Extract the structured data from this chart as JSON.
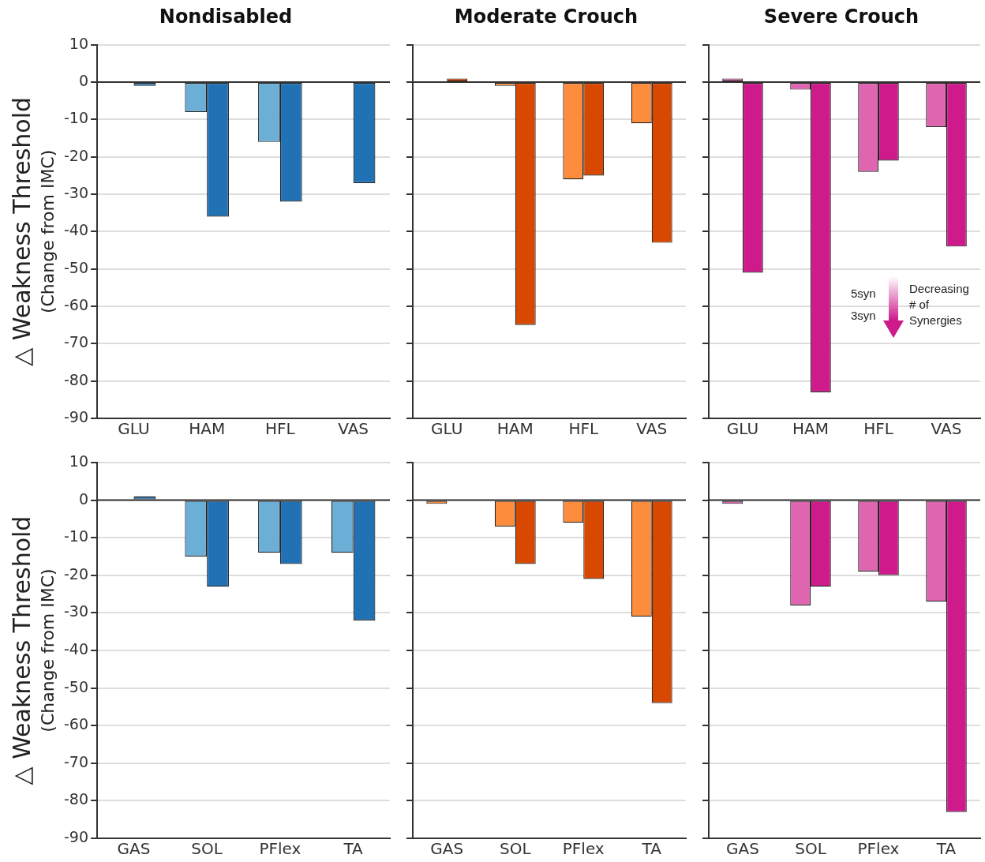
{
  "chart_data": [
    {
      "type": "bar",
      "title": "Nondisabled",
      "ylabel": "△ Weakness Threshold\n(Change from IMC)",
      "categories": [
        "GLU",
        "HAM",
        "HFL",
        "VAS"
      ],
      "series": [
        {
          "color": "#6baed6",
          "values": [
            0,
            -8,
            -16,
            0
          ]
        },
        {
          "color": "#2171b5",
          "values": [
            -1,
            -36,
            -32,
            -27
          ]
        }
      ],
      "ylim": [
        -90,
        10
      ],
      "yticks": [
        -90,
        -80,
        -70,
        -60,
        -50,
        -40,
        -30,
        -20,
        -10,
        0,
        10
      ],
      "grid": "y",
      "ref_lines": [
        {
          "axis": "y",
          "value": 0,
          "color": "#333333"
        }
      ]
    },
    {
      "type": "bar",
      "title": "Moderate Crouch",
      "categories": [
        "GLU",
        "HAM",
        "HFL",
        "VAS"
      ],
      "series": [
        {
          "color": "#fd8d3c",
          "values": [
            0,
            -1,
            -26,
            -11
          ]
        },
        {
          "color": "#d94801",
          "values": [
            1,
            -65,
            -25,
            -43
          ]
        }
      ],
      "ylim": [
        -90,
        10
      ],
      "yticks": [
        -90,
        -80,
        -70,
        -60,
        -50,
        -40,
        -30,
        -20,
        -10,
        0,
        10
      ],
      "grid": "y",
      "tick_labels": "x",
      "ref_lines": [
        {
          "axis": "y",
          "value": 0,
          "color": "#333333"
        }
      ]
    },
    {
      "type": "bar",
      "title": "Severe Crouch",
      "categories": [
        "GLU",
        "HAM",
        "HFL",
        "VAS"
      ],
      "series": [
        {
          "color": "#df65b0",
          "values": [
            1,
            -2,
            -24,
            -12
          ]
        },
        {
          "color": "#ce1a8a",
          "values": [
            -51,
            -83,
            -21,
            -44
          ]
        }
      ],
      "ylim": [
        -90,
        10
      ],
      "yticks": [
        -90,
        -80,
        -70,
        -60,
        -50,
        -40,
        -30,
        -20,
        -10,
        0,
        10
      ],
      "grid": "y",
      "tick_labels": "x",
      "ref_lines": [
        {
          "axis": "y",
          "value": 0,
          "color": "#333333"
        }
      ],
      "annotations": [
        "5syn",
        "3syn",
        "Decreasing # of Synergies"
      ]
    },
    {
      "type": "bar",
      "ylabel": "△ Weakness Threshold\n(Change from IMC)",
      "categories": [
        "GAS",
        "SOL",
        "PFlex",
        "TA"
      ],
      "series": [
        {
          "color": "#6baed6",
          "values": [
            0,
            -15,
            -14,
            -14
          ]
        },
        {
          "color": "#2171b5",
          "values": [
            1,
            -23,
            -17,
            -32
          ]
        }
      ],
      "ylim": [
        -90,
        10
      ],
      "yticks": [
        -90,
        -80,
        -70,
        -60,
        -50,
        -40,
        -30,
        -20,
        -10,
        0,
        10
      ],
      "grid": "y",
      "ref_lines": [
        {
          "axis": "y",
          "value": 0,
          "color": "#333333"
        }
      ]
    },
    {
      "type": "bar",
      "categories": [
        "GAS",
        "SOL",
        "PFlex",
        "TA"
      ],
      "series": [
        {
          "color": "#fd8d3c",
          "values": [
            -1,
            -7,
            -6,
            -31
          ]
        },
        {
          "color": "#d94801",
          "values": [
            0,
            -17,
            -21,
            -54
          ]
        }
      ],
      "ylim": [
        -90,
        10
      ],
      "yticks": [
        -90,
        -80,
        -70,
        -60,
        -50,
        -40,
        -30,
        -20,
        -10,
        0,
        10
      ],
      "grid": "y",
      "tick_labels": "x",
      "ref_lines": [
        {
          "axis": "y",
          "value": 0,
          "color": "#333333"
        }
      ]
    },
    {
      "type": "bar",
      "categories": [
        "GAS",
        "SOL",
        "PFlex",
        "TA"
      ],
      "series": [
        {
          "color": "#df65b0",
          "values": [
            -1,
            -28,
            -19,
            -27
          ]
        },
        {
          "color": "#ce1a8a",
          "values": [
            0,
            -23,
            -20,
            -83
          ]
        }
      ],
      "ylim": [
        -90,
        10
      ],
      "yticks": [
        -90,
        -80,
        -70,
        -60,
        -50,
        -40,
        -30,
        -20,
        -10,
        0,
        10
      ],
      "grid": "y",
      "tick_labels": "x",
      "ref_lines": [
        {
          "axis": "y",
          "value": 0,
          "color": "#333333"
        }
      ]
    }
  ]
}
